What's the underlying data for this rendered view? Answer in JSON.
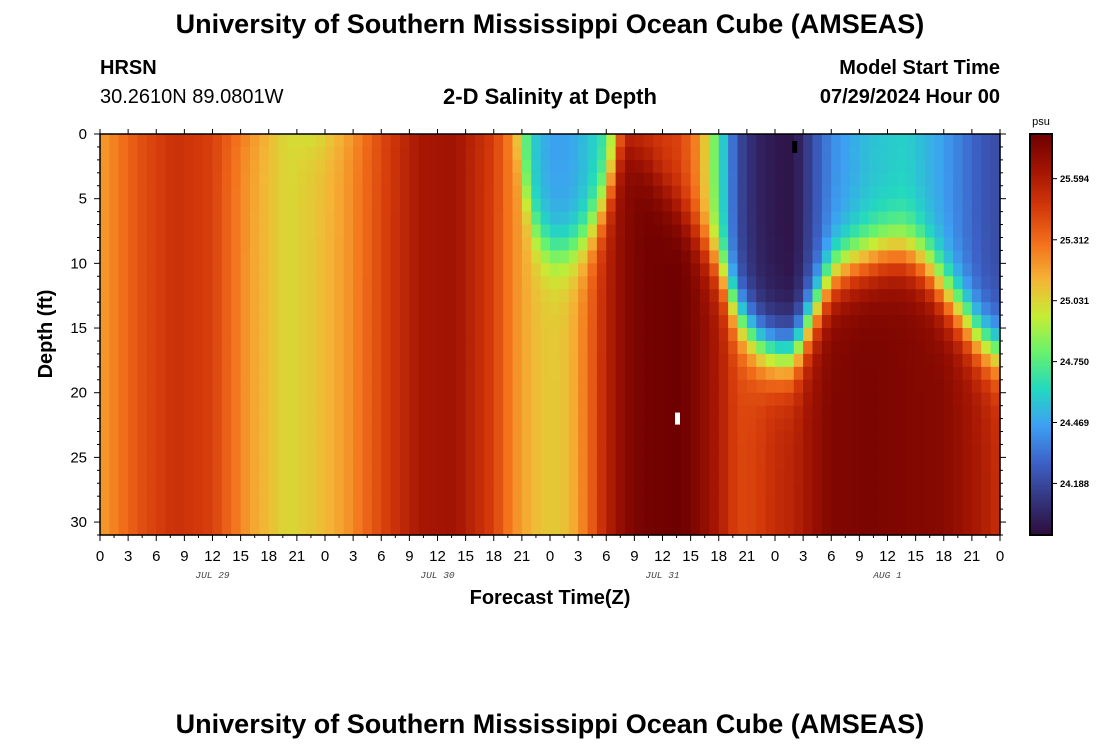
{
  "header": {
    "title": "University of Southern Mississippi Ocean Cube (AMSEAS)",
    "station": "HRSN",
    "coords": "30.2610N  89.0801W",
    "subtitle": "2-D Salinity at Depth",
    "model_label": "Model Start Time",
    "model_time": "07/29/2024 Hour 00"
  },
  "footer": {
    "title": "University of Southern Mississippi Ocean Cube (AMSEAS)"
  },
  "chart_data": {
    "type": "heatmap",
    "title": "2-D Salinity at Depth",
    "xlabel": "Forecast Time(Z)",
    "ylabel": "Depth (ft)",
    "x_ticks": [
      "0",
      "3",
      "6",
      "9",
      "12",
      "15",
      "18",
      "21",
      "0",
      "3",
      "6",
      "9",
      "12",
      "15",
      "18",
      "21",
      "0",
      "3",
      "6",
      "9",
      "12",
      "15",
      "18",
      "21",
      "0",
      "3",
      "6",
      "9",
      "12",
      "15",
      "18",
      "21",
      "0"
    ],
    "x_range_hours": [
      0,
      96
    ],
    "date_labels": [
      {
        "label": "JUL 29",
        "hour": 12
      },
      {
        "label": "JUL 30",
        "hour": 36
      },
      {
        "label": "JUL 31",
        "hour": 60
      },
      {
        "label": "AUG 1",
        "hour": 84
      }
    ],
    "y_ticks": [
      0,
      5,
      10,
      15,
      20,
      25,
      30
    ],
    "ylim": [
      0,
      31
    ],
    "y_inverted": true,
    "colorbar": {
      "unit": "psu",
      "range": [
        23.95,
        25.8
      ],
      "ticks": [
        "25.594",
        "25.312",
        "25.031",
        "24.750",
        "24.469",
        "24.188"
      ],
      "colors": [
        "#2d0c3c",
        "#34367f",
        "#3d62c8",
        "#3da0f2",
        "#23d8c0",
        "#67f26e",
        "#c6ed34",
        "#f4b436",
        "#f3701b",
        "#d3380a",
        "#a31503",
        "#6e0000"
      ]
    },
    "columns": [
      {
        "hour": 0,
        "top": 25.18,
        "bottom": 25.18
      },
      {
        "hour": 4,
        "top": 25.38,
        "bottom": 25.38
      },
      {
        "hour": 8,
        "top": 25.5,
        "bottom": 25.5
      },
      {
        "hour": 12,
        "top": 25.44,
        "bottom": 25.44
      },
      {
        "hour": 16,
        "top": 25.26,
        "bottom": 25.18
      },
      {
        "hour": 20,
        "top": 25.0,
        "bottom": 25.02
      },
      {
        "hour": 23,
        "top": 24.92,
        "bottom": 25.08
      },
      {
        "hour": 26,
        "top": 25.12,
        "bottom": 25.18
      },
      {
        "hour": 30,
        "top": 25.4,
        "bottom": 25.42
      },
      {
        "hour": 34,
        "top": 25.62,
        "bottom": 25.62
      },
      {
        "hour": 38,
        "top": 25.64,
        "bottom": 25.64
      },
      {
        "hour": 42,
        "top": 25.46,
        "bottom": 25.44
      },
      {
        "hour": 44,
        "top": 25.2,
        "bottom": 25.24
      },
      {
        "hour": 46,
        "top": 24.6,
        "bottom": 25.12
      },
      {
        "hour": 48,
        "top": 24.46,
        "bottom": 25.06
      },
      {
        "hour": 50,
        "top": 24.46,
        "bottom": 25.1
      },
      {
        "hour": 52,
        "top": 24.55,
        "bottom": 25.3
      },
      {
        "hour": 54,
        "top": 24.7,
        "bottom": 25.56
      },
      {
        "hour": 56,
        "top": 25.4,
        "bottom": 25.72
      },
      {
        "hour": 58,
        "top": 25.48,
        "bottom": 25.78
      },
      {
        "hour": 62,
        "top": 25.42,
        "bottom": 25.8
      },
      {
        "hour": 64,
        "top": 25.2,
        "bottom": 25.72
      },
      {
        "hour": 66,
        "top": 24.7,
        "bottom": 25.6
      },
      {
        "hour": 68,
        "top": 24.2,
        "bottom": 25.42
      },
      {
        "hour": 70,
        "top": 24.05,
        "bottom": 25.44
      },
      {
        "hour": 72,
        "top": 24.0,
        "bottom": 25.52
      },
      {
        "hour": 74,
        "top": 23.98,
        "bottom": 25.56
      },
      {
        "hour": 76,
        "top": 24.2,
        "bottom": 25.66
      },
      {
        "hour": 78,
        "top": 24.4,
        "bottom": 25.74
      },
      {
        "hour": 82,
        "top": 24.55,
        "bottom": 25.76
      },
      {
        "hour": 86,
        "top": 24.6,
        "bottom": 25.74
      },
      {
        "hour": 90,
        "top": 24.45,
        "bottom": 25.72
      },
      {
        "hour": 94,
        "top": 24.25,
        "bottom": 25.6
      },
      {
        "hour": 96,
        "top": 24.2,
        "bottom": 25.5
      }
    ],
    "interface": [
      {
        "hour": 44,
        "depth": 0
      },
      {
        "hour": 46,
        "depth": 7
      },
      {
        "hour": 48,
        "depth": 9
      },
      {
        "hour": 50,
        "depth": 9
      },
      {
        "hour": 52,
        "depth": 8
      },
      {
        "hour": 54,
        "depth": 5
      },
      {
        "hour": 56,
        "depth": 0
      },
      {
        "hour": 66,
        "depth": 10
      },
      {
        "hour": 68,
        "depth": 14
      },
      {
        "hour": 70,
        "depth": 16
      },
      {
        "hour": 72,
        "depth": 17
      },
      {
        "hour": 74,
        "depth": 17
      },
      {
        "hour": 76,
        "depth": 14
      },
      {
        "hour": 78,
        "depth": 11
      },
      {
        "hour": 80,
        "depth": 10
      },
      {
        "hour": 84,
        "depth": 9
      },
      {
        "hour": 86,
        "depth": 9
      },
      {
        "hour": 88,
        "depth": 10
      },
      {
        "hour": 90,
        "depth": 12
      },
      {
        "hour": 92,
        "depth": 14
      },
      {
        "hour": 94,
        "depth": 16
      },
      {
        "hour": 96,
        "depth": 17
      }
    ],
    "markers": [
      {
        "hour": 74.1,
        "depth": 1.0,
        "color": "#000000"
      },
      {
        "hour": 61.6,
        "depth": 22.0,
        "color": "#ffffff"
      }
    ]
  }
}
